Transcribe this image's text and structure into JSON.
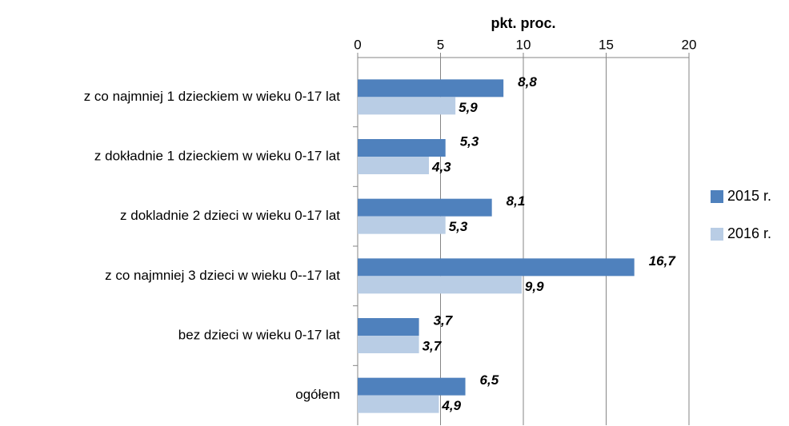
{
  "chart_data": {
    "type": "bar",
    "orientation": "horizontal",
    "axis_title": "pkt. proc.",
    "categories": [
      "z co najmniej 1 dzieckiem w wieku 0-17 lat",
      "z dokładnie 1 dzieckiem w wieku 0-17 lat",
      "z dokladnie 2 dzieci w wieku 0-17 lat",
      "z co najmniej 3 dzieci w wieku 0--17 lat",
      "bez dzieci w wieku 0-17 lat",
      "ogółem"
    ],
    "series": [
      {
        "name": "2015 r.",
        "color": "#4f81bd",
        "values": [
          8.8,
          5.3,
          8.1,
          16.7,
          3.7,
          6.5
        ],
        "value_labels": [
          "8,8",
          "5,3",
          "8,1",
          "16,7",
          "3,7",
          "6,5"
        ]
      },
      {
        "name": "2016 r.",
        "color": "#b9cde5",
        "values": [
          5.9,
          4.3,
          5.3,
          9.9,
          3.7,
          4.9
        ],
        "value_labels": [
          "5,9",
          "4,3",
          "5,3",
          "9,9",
          "3,7",
          "4,9"
        ]
      }
    ],
    "xlim": [
      0,
      20
    ],
    "xticks": [
      0,
      5,
      10,
      15,
      20
    ],
    "grid": true,
    "legend": "right"
  }
}
